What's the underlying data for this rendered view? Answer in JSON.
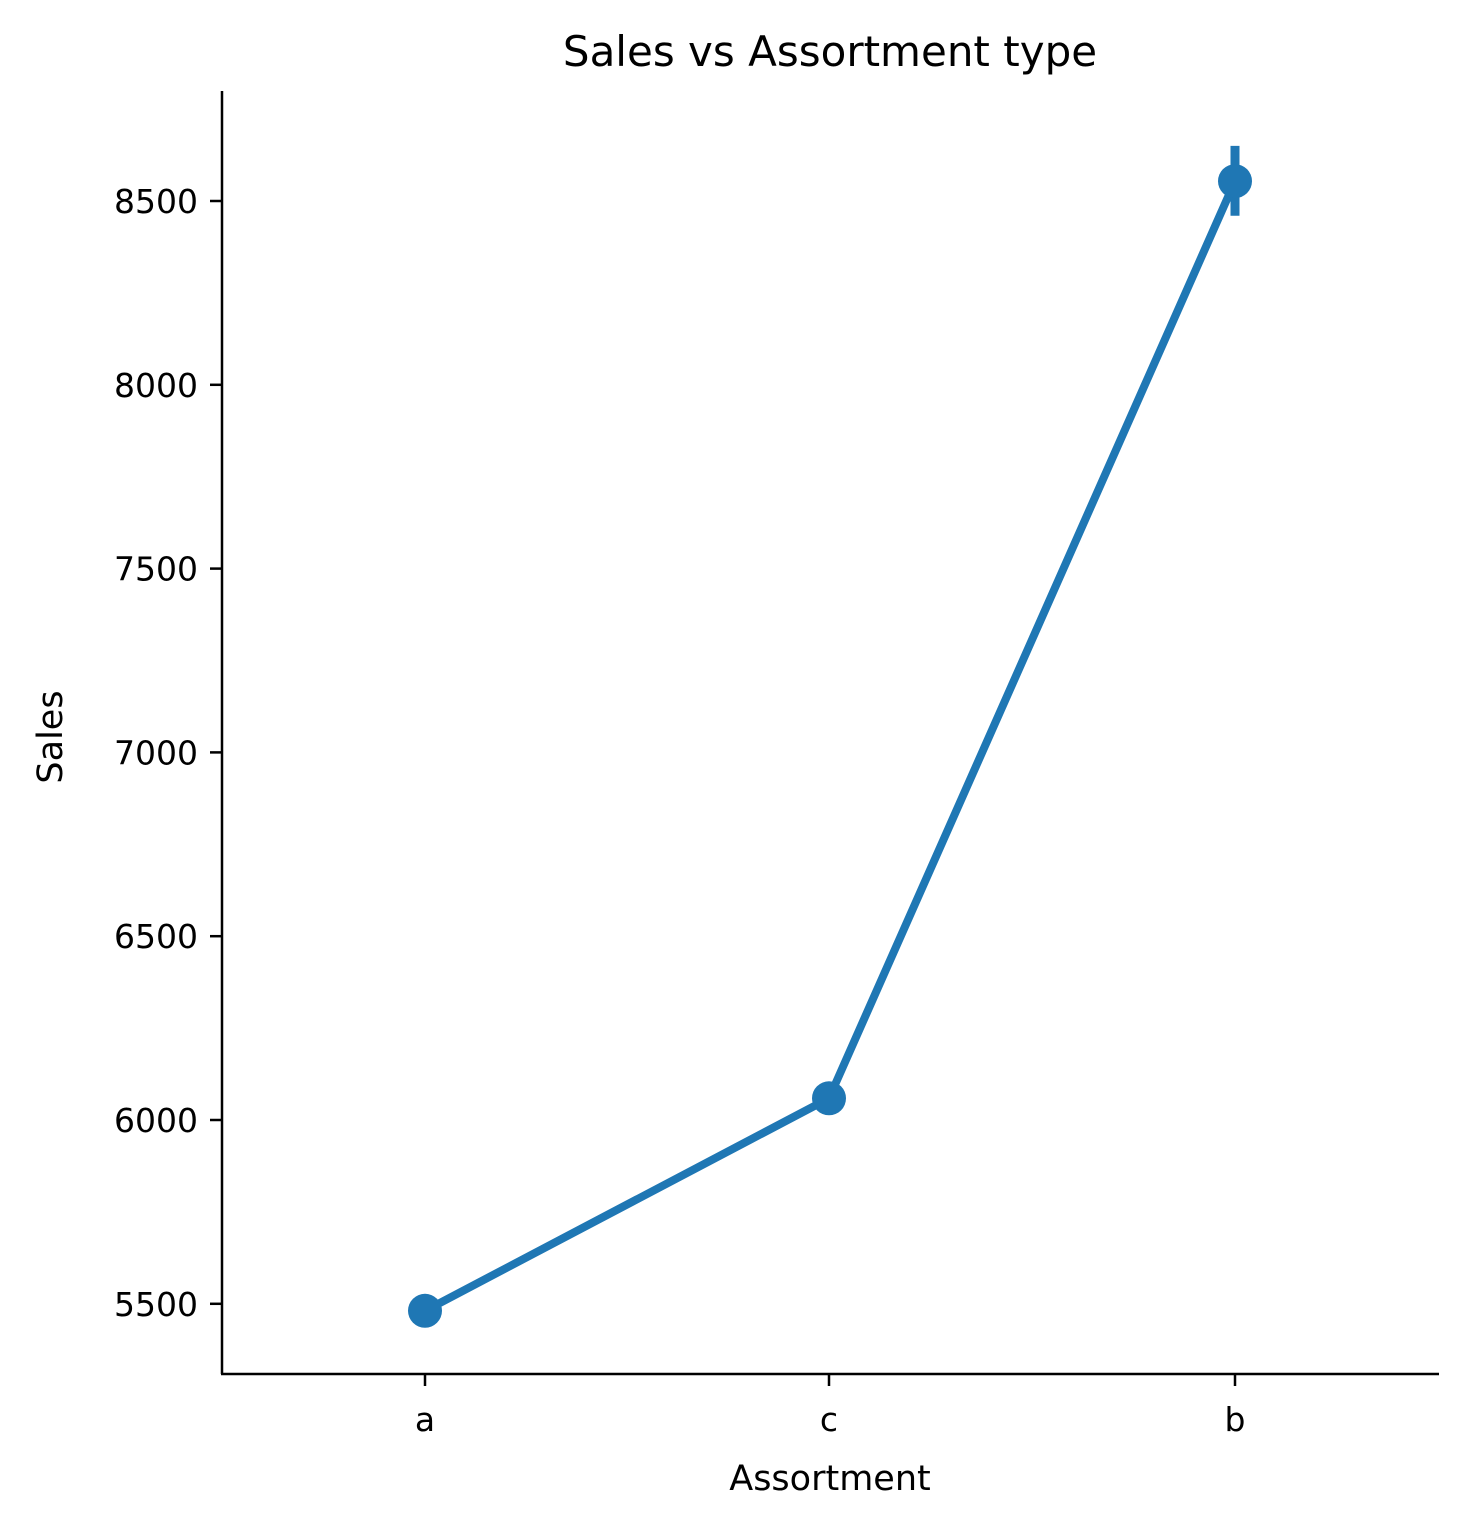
{
  "chart_data": {
    "type": "line",
    "title": "Sales vs Assortment type",
    "xlabel": "Assortment",
    "ylabel": "Sales",
    "categories": [
      "a",
      "c",
      "b"
    ],
    "series": [
      {
        "values": [
          5481,
          6059,
          8554
        ],
        "error_low": [
          5466,
          6040,
          8460
        ],
        "error_high": [
          5496,
          6078,
          8650
        ]
      }
    ],
    "ylim": [
      5320,
      8800
    ],
    "yticks": [
      5500,
      6000,
      6500,
      7000,
      7500,
      8000,
      8500
    ],
    "ytick_labels": [
      "5500",
      "6000",
      "6500",
      "7000",
      "7500",
      "8000",
      "8500"
    ],
    "grid": false,
    "color": "#1f77b4"
  }
}
